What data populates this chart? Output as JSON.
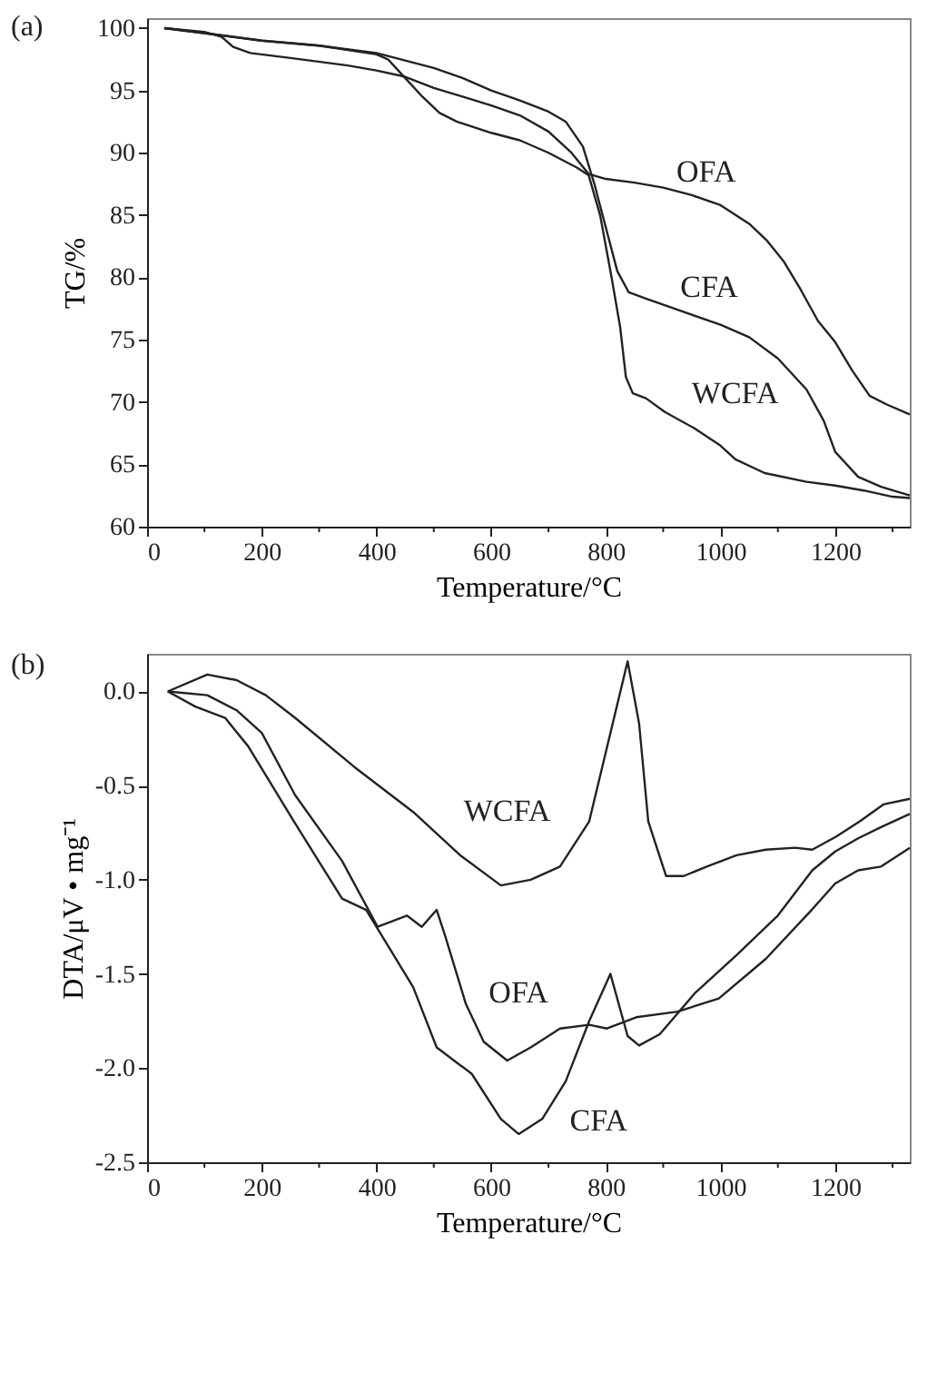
{
  "chart_data": [
    {
      "type": "line",
      "title": "(a)",
      "xlabel": "Temperature/°C",
      "ylabel": "TG/%",
      "xlim": [
        0,
        1330
      ],
      "ylim": [
        60,
        100.8
      ],
      "xticks": [
        0,
        {
          "value": 100,
          "label": null
        },
        200,
        {
          "value": 300,
          "label": null
        },
        400,
        {
          "value": 500,
          "label": null
        },
        600,
        {
          "value": 700,
          "label": null
        },
        800,
        {
          "value": 900,
          "label": null
        },
        1000,
        {
          "value": 1100,
          "label": null
        },
        1200,
        {
          "value": 1300,
          "label": null
        }
      ],
      "yticks": [
        60,
        65,
        70,
        75,
        80,
        85,
        90,
        95,
        100
      ],
      "grid": false,
      "legend": false,
      "marker": "none",
      "line_style": "solid",
      "series": [
        {
          "name": "OFA",
          "color": "#222222",
          "x": [
            30,
            100,
            130,
            150,
            180,
            250,
            350,
            400,
            450,
            500,
            550,
            600,
            650,
            700,
            740,
            770,
            800,
            850,
            900,
            950,
            1000,
            1050,
            1080,
            1110,
            1140,
            1170,
            1200,
            1230,
            1260,
            1290,
            1330
          ],
          "values": [
            100,
            99.7,
            99.3,
            98.5,
            98,
            97.6,
            97,
            96.6,
            96.1,
            95.2,
            94.5,
            93.8,
            93,
            91.7,
            90,
            88.3,
            87.9,
            87.6,
            87.2,
            86.6,
            85.8,
            84.3,
            83,
            81.3,
            79,
            76.5,
            74.8,
            72.5,
            70.5,
            69.8,
            69
          ]
        },
        {
          "name": "CFA",
          "color": "#222222",
          "x": [
            30,
            100,
            200,
            300,
            400,
            450,
            500,
            550,
            600,
            650,
            700,
            730,
            760,
            780,
            800,
            820,
            840,
            870,
            950,
            1000,
            1050,
            1100,
            1150,
            1180,
            1200,
            1240,
            1280,
            1330
          ],
          "values": [
            100,
            99.6,
            99,
            98.6,
            98,
            97.4,
            96.8,
            96,
            95,
            94.2,
            93.3,
            92.5,
            90.5,
            87.5,
            84,
            80.5,
            78.8,
            78.3,
            77,
            76.2,
            75.2,
            73.5,
            71,
            68.5,
            66,
            64,
            63.2,
            62.5
          ]
        },
        {
          "name": "WCFA",
          "color": "#222222",
          "x": [
            30,
            100,
            200,
            300,
            400,
            420,
            450,
            480,
            510,
            540,
            600,
            650,
            700,
            750,
            770,
            790,
            810,
            825,
            835,
            847,
            870,
            903,
            954,
            1000,
            1026,
            1077,
            1150,
            1200,
            1250,
            1300,
            1330
          ],
          "values": [
            100,
            99.6,
            99,
            98.6,
            97.9,
            97.5,
            96,
            94.5,
            93.2,
            92.5,
            91.6,
            91,
            90,
            88.8,
            88.2,
            85,
            80,
            76,
            72,
            70.7,
            70.3,
            69.2,
            67.9,
            66.5,
            65.4,
            64.3,
            63.6,
            63.3,
            62.9,
            62.4,
            62.3
          ]
        }
      ]
    },
    {
      "type": "line",
      "title": "(b)",
      "xlabel": "Temperature/°C",
      "ylabel": "DTA/μV • mg⁻¹",
      "xlim": [
        0,
        1330
      ],
      "ylim": [
        -2.5,
        0.2
      ],
      "xticks": [
        0,
        {
          "value": 100,
          "label": null
        },
        200,
        {
          "value": 300,
          "label": null
        },
        400,
        {
          "value": 500,
          "label": null
        },
        600,
        {
          "value": 700,
          "label": null
        },
        800,
        {
          "value": 900,
          "label": null
        },
        1000,
        {
          "value": 1100,
          "label": null
        },
        1200,
        {
          "value": 1300,
          "label": null
        }
      ],
      "yticks": [
        -2.5,
        {
          "value": -2,
          "label": "-2.0"
        },
        -1.5,
        {
          "value": -1,
          "label": "-1.0"
        },
        -0.5,
        {
          "value": 0,
          "label": "0.0"
        }
      ],
      "grid": false,
      "legend": false,
      "marker": "none",
      "line_style": "solid",
      "series": [
        {
          "name": "WCFA",
          "color": "#222222",
          "x": [
            36,
            105,
            156,
            207,
            258,
            361,
            464,
            546,
            617,
            669,
            720,
            771,
            812,
            838,
            858,
            874,
            905,
            936,
            976,
            1028,
            1079,
            1130,
            1160,
            1202,
            1243,
            1284,
            1330
          ],
          "values": [
            0,
            0.09,
            0.06,
            -0.02,
            -0.14,
            -0.4,
            -0.64,
            -0.87,
            -1.03,
            -1.0,
            -0.93,
            -0.69,
            -0.17,
            0.16,
            -0.17,
            -0.69,
            -0.98,
            -0.98,
            -0.93,
            -0.87,
            -0.84,
            -0.83,
            -0.84,
            -0.77,
            -0.69,
            -0.6,
            -0.57
          ]
        },
        {
          "name": "OFA",
          "color": "#222222",
          "x": [
            36,
            105,
            156,
            200,
            258,
            340,
            402,
            453,
            479,
            505,
            520,
            556,
            587,
            628,
            669,
            720,
            771,
            802,
            853,
            925,
            997,
            1079,
            1159,
            1200,
            1240,
            1280,
            1330
          ],
          "values": [
            0,
            -0.02,
            -0.1,
            -0.22,
            -0.55,
            -0.9,
            -1.25,
            -1.19,
            -1.25,
            -1.16,
            -1.3,
            -1.66,
            -1.86,
            -1.96,
            -1.89,
            -1.79,
            -1.77,
            -1.79,
            -1.73,
            -1.7,
            -1.63,
            -1.42,
            -1.16,
            -1.02,
            -0.95,
            -0.93,
            -0.83
          ]
        },
        {
          "name": "CFA",
          "color": "#222222",
          "x": [
            36,
            84,
            136,
            176,
            258,
            340,
            382,
            464,
            505,
            566,
            617,
            648,
            689,
            730,
            771,
            808,
            838,
            858,
            894,
            956,
            1028,
            1100,
            1160,
            1200,
            1240,
            1280,
            1330
          ],
          "values": [
            0,
            -0.08,
            -0.14,
            -0.29,
            -0.7,
            -1.1,
            -1.16,
            -1.57,
            -1.89,
            -2.03,
            -2.27,
            -2.35,
            -2.27,
            -2.07,
            -1.75,
            -1.5,
            -1.83,
            -1.88,
            -1.82,
            -1.6,
            -1.4,
            -1.19,
            -0.95,
            -0.85,
            -0.78,
            -0.72,
            -0.65
          ]
        }
      ]
    }
  ]
}
